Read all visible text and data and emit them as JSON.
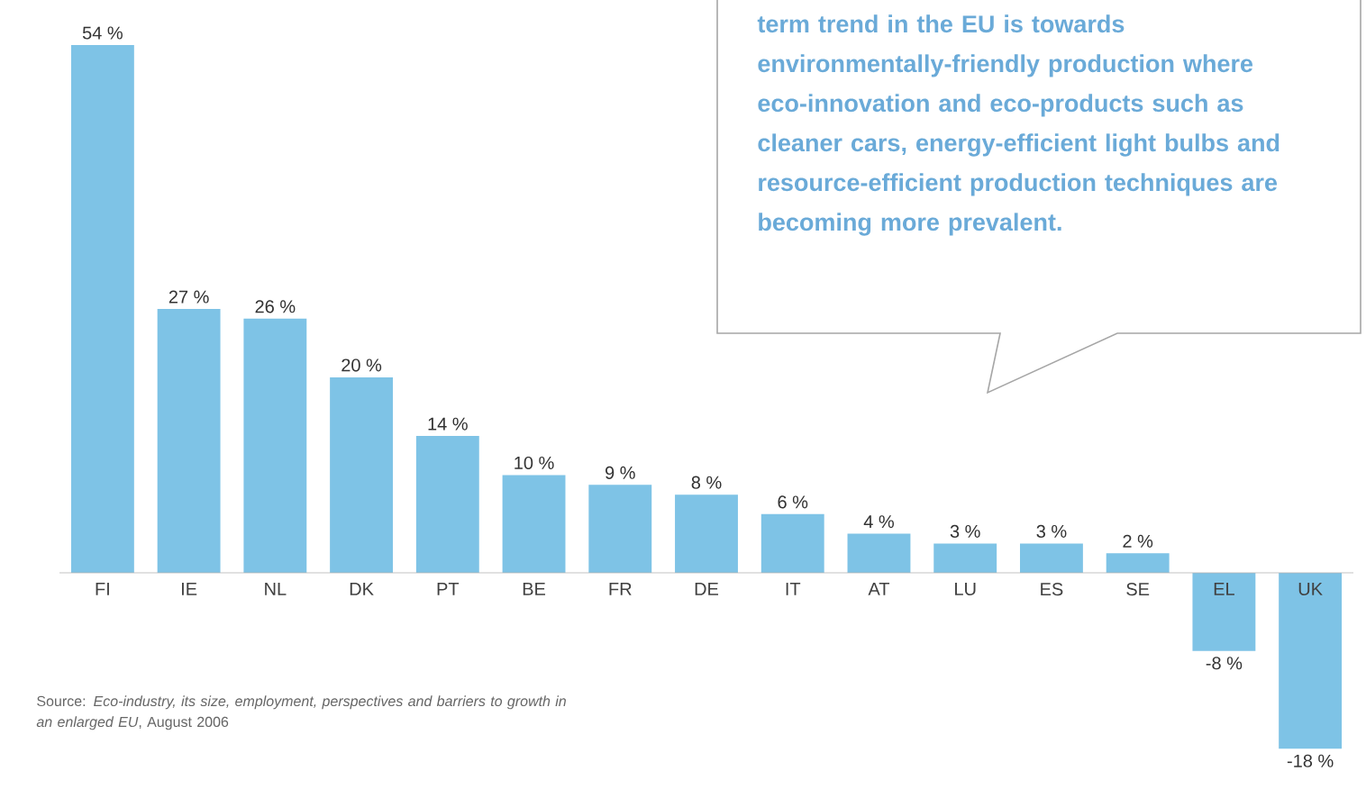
{
  "chart_data": {
    "type": "bar",
    "categories": [
      "FI",
      "IE",
      "NL",
      "DK",
      "PT",
      "BE",
      "FR",
      "DE",
      "IT",
      "AT",
      "LU",
      "ES",
      "SE",
      "EL",
      "UK"
    ],
    "values": [
      54,
      27,
      26,
      20,
      14,
      10,
      9,
      8,
      6,
      4,
      3,
      3,
      2,
      -8,
      -18
    ],
    "value_labels": [
      "54 %",
      "27 %",
      "26 %",
      "20 %",
      "14 %",
      "10 %",
      "9 %",
      "8 %",
      "6 %",
      "4 %",
      "3 %",
      "3 %",
      "2 %",
      "-8 %",
      "-18 %"
    ],
    "color": "#7ec3e6",
    "annotations": [
      "term trend in the EU is towards environmentally-friendly production where eco-innovation and eco-products such as cleaner cars, energy-efficient light bulbs and resource-efficient production techniques are becoming more prevalent.",
      "Source: *Eco-industry, its size, employment, perspectives and barriers to growth in an enlarged EU*, August 2006"
    ]
  }
}
